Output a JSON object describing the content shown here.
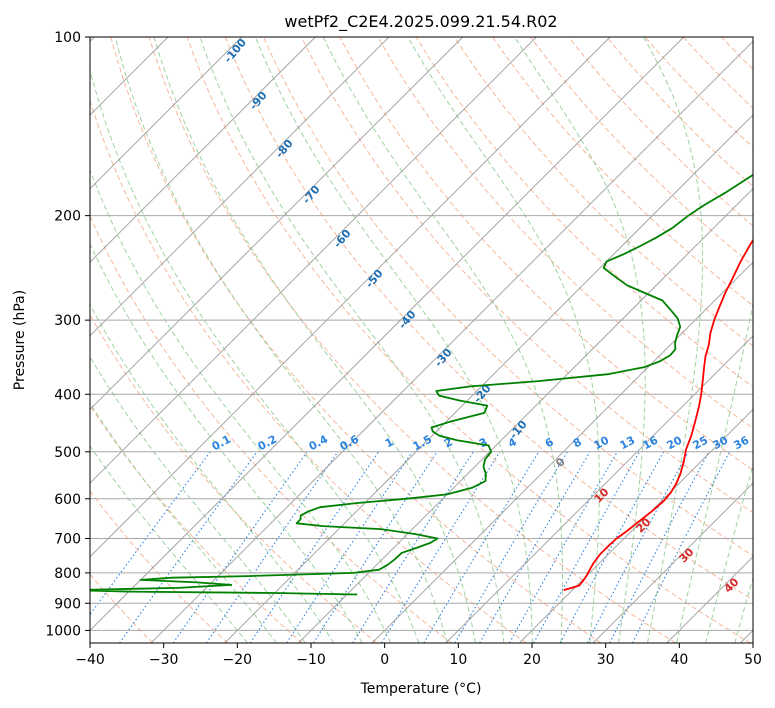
{
  "chart_data": {
    "type": "line",
    "subtype": "skew-T log-P diagram",
    "title": "wetPf2_C2E4.2025.099.21.54.R02",
    "xlabel": "Temperature (°C)",
    "ylabel": "Pressure (hPa)",
    "xlim": [
      -40,
      50
    ],
    "ylim": [
      1050,
      100
    ],
    "y_scale": "log",
    "grid": true,
    "x_ticks": [
      -40,
      -30,
      -20,
      -10,
      0,
      10,
      20,
      30,
      40,
      50
    ],
    "y_ticks": [
      100,
      200,
      300,
      400,
      500,
      600,
      700,
      800,
      900,
      1000
    ],
    "series": [
      {
        "color": "#ff0000",
        "points": [
          [
            855,
            18.8
          ],
          [
            848,
            19.6
          ],
          [
            840,
            20.3
          ],
          [
            825,
            20.2
          ],
          [
            810,
            20.0
          ],
          [
            790,
            19.6
          ],
          [
            770,
            19.2
          ],
          [
            745,
            18.9
          ],
          [
            720,
            18.9
          ],
          [
            700,
            19.0
          ],
          [
            680,
            19.4
          ],
          [
            655,
            19.7
          ],
          [
            630,
            20.1
          ],
          [
            605,
            20.3
          ],
          [
            585,
            20.1
          ],
          [
            565,
            19.6
          ],
          [
            545,
            18.9
          ],
          [
            520,
            17.7
          ],
          [
            495,
            16.3
          ],
          [
            470,
            15.2
          ],
          [
            445,
            13.8
          ],
          [
            420,
            12.3
          ],
          [
            400,
            10.9
          ],
          [
            380,
            9.3
          ],
          [
            360,
            7.6
          ],
          [
            345,
            6.3
          ],
          [
            330,
            5.2
          ],
          [
            315,
            3.8
          ],
          [
            300,
            2.6
          ],
          [
            285,
            1.5
          ],
          [
            270,
            0.4
          ],
          [
            255,
            -0.6
          ],
          [
            240,
            -1.7
          ],
          [
            225,
            -2.7
          ],
          [
            210,
            -3.6
          ],
          [
            198,
            -4.8
          ],
          [
            185,
            -5.9
          ],
          [
            170,
            -6.8
          ],
          [
            155,
            -7.9
          ],
          [
            142,
            -9.0
          ],
          [
            132,
            -10.0
          ],
          [
            125,
            -10.8
          ],
          [
            118,
            -11.4
          ],
          [
            111,
            -13.9
          ],
          [
            106,
            -15.9
          ],
          [
            103,
            -17.8
          ],
          [
            100,
            -19.1
          ]
        ]
      },
      {
        "color": "#008000",
        "points": [
          [
            870,
            -8.6
          ],
          [
            865,
            -20.0
          ],
          [
            860,
            -40.0
          ],
          [
            855,
            -48.0
          ],
          [
            848,
            -33.8
          ],
          [
            838,
            -27.0
          ],
          [
            830,
            -32.0
          ],
          [
            822,
            -40.0
          ],
          [
            815,
            -36.0
          ],
          [
            810,
            -26.0
          ],
          [
            800,
            -12.0
          ],
          [
            790,
            -9.0
          ],
          [
            775,
            -8.5
          ],
          [
            760,
            -8.3
          ],
          [
            740,
            -8.2
          ],
          [
            725,
            -6.8
          ],
          [
            712,
            -5.7
          ],
          [
            700,
            -5.3
          ],
          [
            688,
            -9.0
          ],
          [
            675,
            -14.3
          ],
          [
            667,
            -22.5
          ],
          [
            660,
            -26.5
          ],
          [
            650,
            -26.5
          ],
          [
            640,
            -27.0
          ],
          [
            630,
            -26.5
          ],
          [
            620,
            -25.5
          ],
          [
            610,
            -21.0
          ],
          [
            600,
            -15.0
          ],
          [
            590,
            -10.0
          ],
          [
            575,
            -7.5
          ],
          [
            560,
            -6.6
          ],
          [
            545,
            -7.5
          ],
          [
            530,
            -8.8
          ],
          [
            515,
            -9.6
          ],
          [
            500,
            -9.8
          ],
          [
            488,
            -11.0
          ],
          [
            478,
            -16.0
          ],
          [
            470,
            -19.0
          ],
          [
            462,
            -20.5
          ],
          [
            455,
            -21.2
          ],
          [
            445,
            -19.5
          ],
          [
            430,
            -16.0
          ],
          [
            418,
            -16.6
          ],
          [
            410,
            -21.0
          ],
          [
            402,
            -24.5
          ],
          [
            395,
            -25.5
          ],
          [
            388,
            -21.5
          ],
          [
            380,
            -13.0
          ],
          [
            370,
            -4.5
          ],
          [
            360,
            -0.5
          ],
          [
            352,
            0.8
          ],
          [
            344,
            1.4
          ],
          [
            336,
            1.3
          ],
          [
            328,
            0.4
          ],
          [
            318,
            -0.4
          ],
          [
            308,
            -1.1
          ],
          [
            298,
            -2.6
          ],
          [
            288,
            -4.8
          ],
          [
            278,
            -7.1
          ],
          [
            270,
            -10.5
          ],
          [
            262,
            -14.0
          ],
          [
            253,
            -16.9
          ],
          [
            245,
            -19.5
          ],
          [
            239,
            -20.0
          ],
          [
            232,
            -18.6
          ],
          [
            225,
            -17.5
          ],
          [
            218,
            -16.5
          ],
          [
            210,
            -15.6
          ],
          [
            200,
            -15.1
          ],
          [
            192,
            -14.4
          ],
          [
            183,
            -13.2
          ],
          [
            172,
            -12.0
          ],
          [
            162,
            -10.9
          ],
          [
            153,
            -9.5
          ],
          [
            145,
            -8.3
          ],
          [
            138,
            -7.0
          ],
          [
            132,
            -6.2
          ],
          [
            127,
            -6.2
          ],
          [
            122,
            -7.4
          ],
          [
            116,
            -8.8
          ],
          [
            110,
            -10.0
          ],
          [
            104,
            -9.7
          ],
          [
            100,
            -8.3
          ]
        ]
      }
    ],
    "dry_adiabats_label_values": [
      -100,
      -90,
      -80,
      -70,
      -60,
      -50,
      -40,
      -30,
      -20,
      -10,
      0,
      10,
      20,
      30,
      40
    ],
    "mixing_ratio_labels": [
      "0.1",
      "0.2",
      "0.4",
      "0.6",
      "1",
      "1.5",
      "2",
      "3",
      "4",
      "6",
      "8",
      "10",
      "13",
      "16",
      "20",
      "25",
      "30",
      "36"
    ],
    "annotations": {
      "dry_adiabat_labels": [
        "-100",
        "-90",
        "-80",
        "-70",
        "-60",
        "-50",
        "-40",
        "-30",
        "-20",
        "-10"
      ],
      "moist_adiabat_labels": [
        "0",
        "10",
        "20",
        "30",
        "40"
      ]
    }
  },
  "colors": {
    "temperature": "#ff0000",
    "dewpoint": "#008000",
    "dry_adiabat": "#f4a582",
    "moist_adiabat": "#8fc98f",
    "mixing_ratio": "#2b83e0",
    "isotherm": "#8c8c8c",
    "isobar": "#a8a8a8",
    "label_blue": "#1f6fb4",
    "label_red": "#d62728",
    "label_gray": "#808080"
  }
}
